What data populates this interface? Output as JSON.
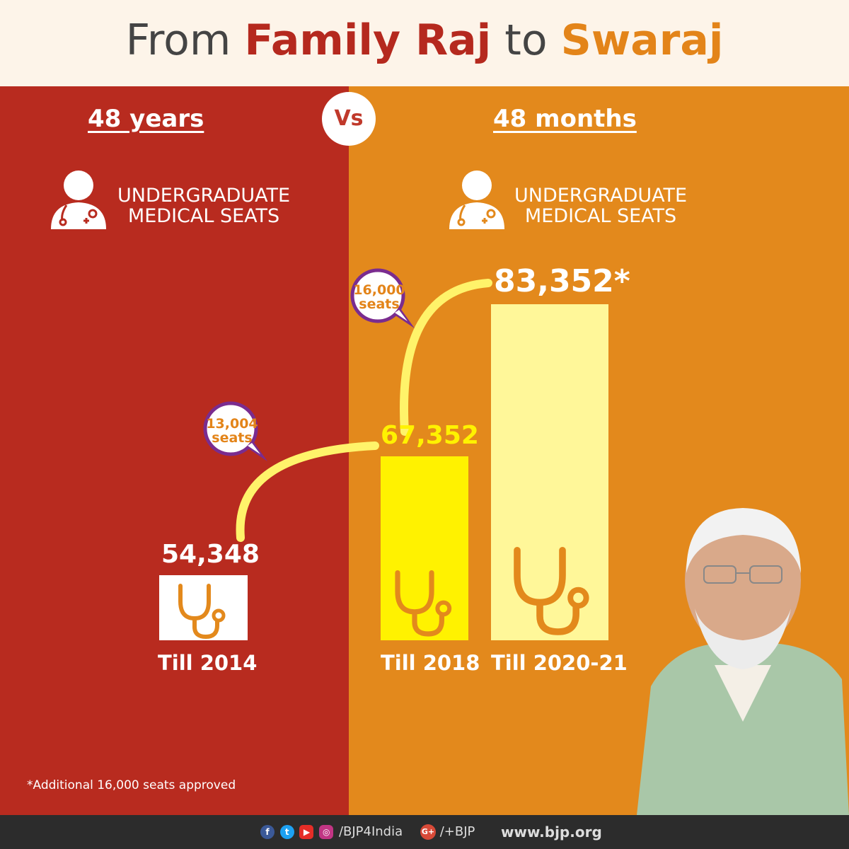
{
  "title": {
    "part1": "From ",
    "part2": "Family Raj",
    "part3": " to ",
    "part4": "Swaraj"
  },
  "left": {
    "heading": "48 years",
    "seat_label_line1": "UNDERGRADUATE",
    "seat_label_line2": "MEDICAL SEATS"
  },
  "right": {
    "heading": "48 months",
    "seat_label_line1": "UNDERGRADUATE",
    "seat_label_line2": "MEDICAL SEATS"
  },
  "vs_label": "Vs",
  "colors": {
    "red_panel": "#b82b1f",
    "orange_panel": "#e3891c",
    "bar_white": "#ffffff",
    "bar_yellow": "#fff200",
    "bar_pale": "#fff799",
    "curve": "#fff36a",
    "bubble_border": "#7a2c8f"
  },
  "chart_data": {
    "type": "bar",
    "categories": [
      "Till 2014",
      "Till 2018",
      "Till 2020-21"
    ],
    "values": [
      54348,
      67352,
      83352
    ],
    "value_labels": [
      "54,348",
      "67,352",
      "83,352*"
    ],
    "annotations": [
      {
        "between": [
          "Till 2014",
          "Till 2018"
        ],
        "line1": "13,004",
        "line2": "seats"
      },
      {
        "between": [
          "Till 2018",
          "Till 2020-21"
        ],
        "line1": "16,000",
        "line2": "seats"
      }
    ],
    "footnote": "*Additional 16,000 seats approved"
  },
  "footer": {
    "handle": "/BJP4India",
    "gplus_label": "G+",
    "gplus_handle": "/+BJP",
    "website": "www.bjp.org"
  }
}
